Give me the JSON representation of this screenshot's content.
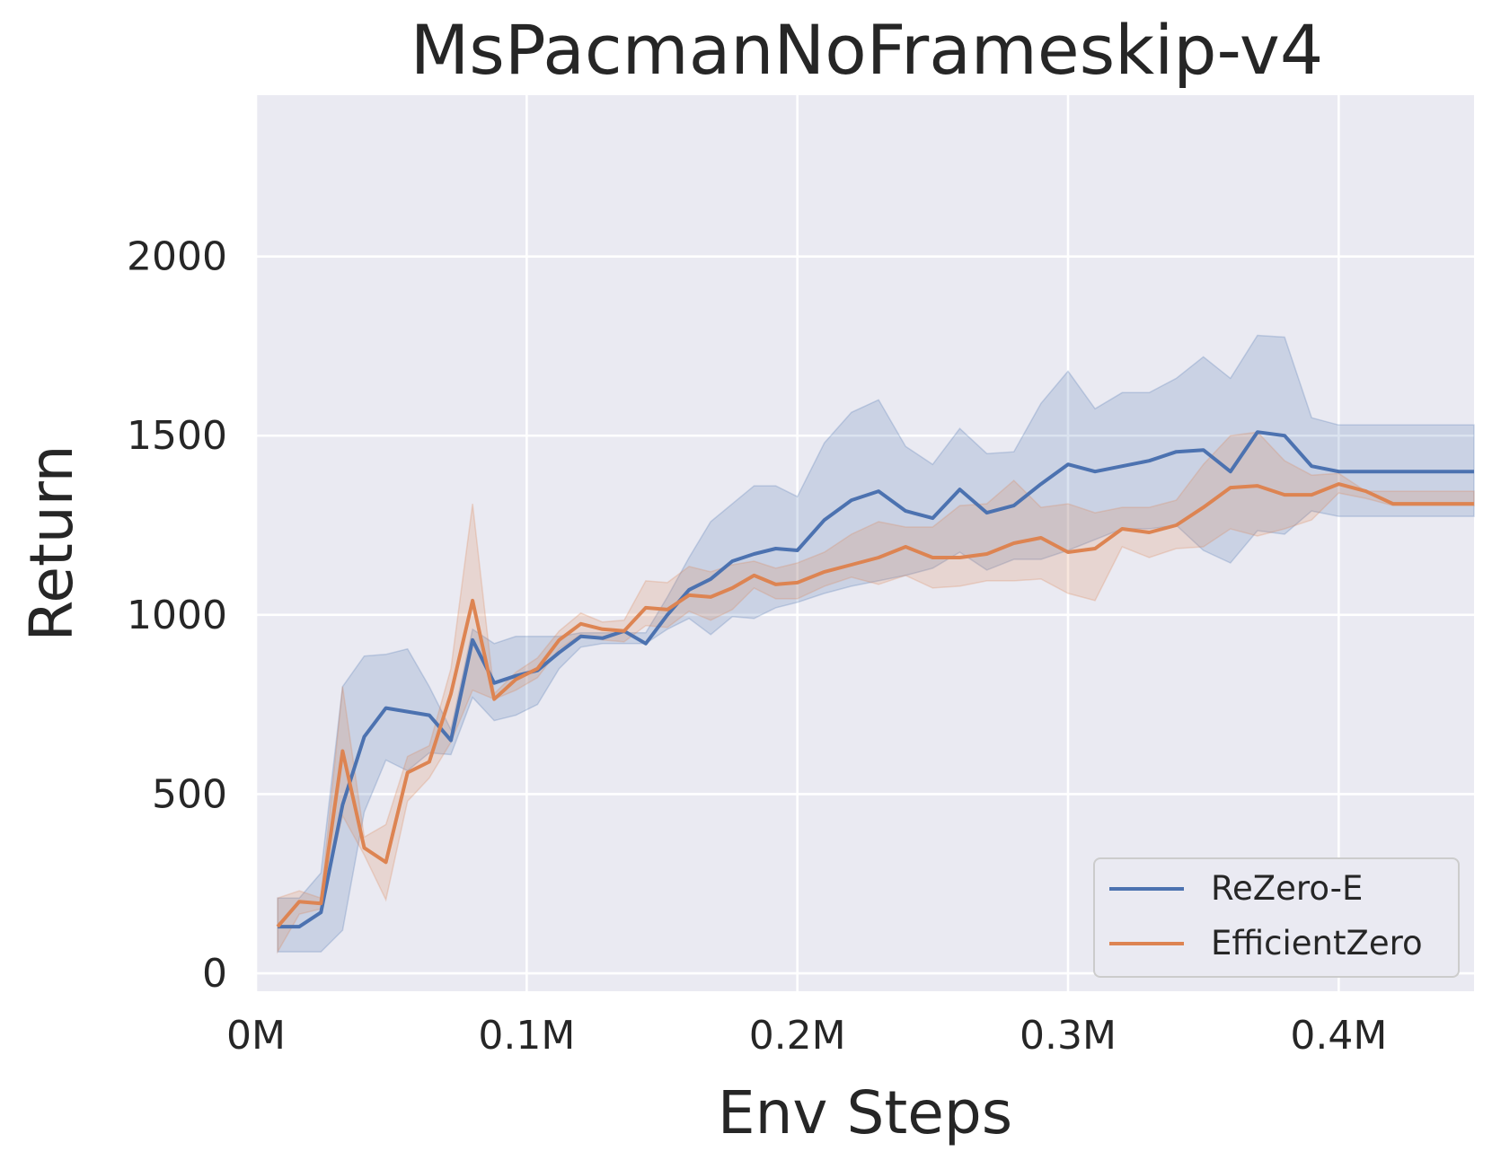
{
  "chart_data": {
    "type": "line",
    "title": "MsPacmanNoFrameskip-v4",
    "xlabel": "Env Steps",
    "ylabel": "Return",
    "xlim": [
      0,
      0.45
    ],
    "ylim": [
      -50,
      2450
    ],
    "xticks": [
      0,
      0.1,
      0.2,
      0.3,
      0.4
    ],
    "xtick_labels": [
      "0M",
      "0.1M",
      "0.2M",
      "0.3M",
      "0.4M"
    ],
    "yticks": [
      0,
      500,
      1000,
      1500,
      2000
    ],
    "ytick_labels": [
      "0",
      "500",
      "1000",
      "1500",
      "2000"
    ],
    "grid": true,
    "legend_position": "lower-right",
    "series": [
      {
        "name": "ReZero-E",
        "color": "#4c72b0",
        "x": [
          0.008,
          0.016,
          0.024,
          0.032,
          0.04,
          0.048,
          0.056,
          0.064,
          0.072,
          0.08,
          0.088,
          0.096,
          0.104,
          0.112,
          0.12,
          0.128,
          0.136,
          0.144,
          0.152,
          0.16,
          0.168,
          0.176,
          0.184,
          0.192,
          0.2,
          0.21,
          0.22,
          0.23,
          0.24,
          0.25,
          0.26,
          0.27,
          0.28,
          0.29,
          0.3,
          0.31,
          0.32,
          0.33,
          0.34,
          0.35,
          0.36,
          0.37,
          0.38,
          0.39,
          0.4,
          0.41,
          0.42,
          0.43,
          0.44,
          0.45
        ],
        "values": [
          130,
          130,
          170,
          470,
          660,
          740,
          730,
          720,
          650,
          930,
          810,
          830,
          845,
          895,
          940,
          935,
          955,
          920,
          1000,
          1070,
          1100,
          1150,
          1170,
          1185,
          1180,
          1265,
          1320,
          1345,
          1290,
          1270,
          1350,
          1285,
          1305,
          1365,
          1420,
          1400,
          1415,
          1430,
          1455,
          1460,
          1400,
          1510,
          1500,
          1415,
          1400,
          1400,
          1400,
          1400,
          1400,
          1400
        ],
        "upper": [
          210,
          210,
          280,
          800,
          885,
          890,
          905,
          800,
          680,
          960,
          920,
          940,
          940,
          940,
          950,
          950,
          950,
          950,
          1050,
          1160,
          1260,
          1310,
          1360,
          1360,
          1330,
          1480,
          1565,
          1600,
          1470,
          1420,
          1520,
          1450,
          1455,
          1590,
          1680,
          1575,
          1620,
          1620,
          1660,
          1720,
          1660,
          1780,
          1775,
          1550,
          1530,
          1530,
          1530,
          1530,
          1530,
          1530
        ],
        "lower": [
          60,
          60,
          60,
          120,
          450,
          595,
          565,
          615,
          610,
          770,
          705,
          720,
          750,
          850,
          910,
          920,
          920,
          920,
          960,
          990,
          945,
          995,
          990,
          1020,
          1035,
          1060,
          1080,
          1095,
          1110,
          1130,
          1175,
          1125,
          1155,
          1155,
          1180,
          1210,
          1240,
          1240,
          1250,
          1180,
          1145,
          1235,
          1225,
          1290,
          1275,
          1275,
          1275,
          1275,
          1275,
          1275
        ]
      },
      {
        "name": "EfficientZero",
        "color": "#dd8452",
        "x": [
          0.008,
          0.016,
          0.024,
          0.032,
          0.04,
          0.048,
          0.056,
          0.064,
          0.072,
          0.08,
          0.088,
          0.096,
          0.104,
          0.112,
          0.12,
          0.128,
          0.136,
          0.144,
          0.152,
          0.16,
          0.168,
          0.176,
          0.184,
          0.192,
          0.2,
          0.21,
          0.22,
          0.23,
          0.24,
          0.25,
          0.26,
          0.27,
          0.28,
          0.29,
          0.3,
          0.31,
          0.32,
          0.33,
          0.34,
          0.35,
          0.36,
          0.37,
          0.38,
          0.39,
          0.4,
          0.41,
          0.42,
          0.43,
          0.44,
          0.45
        ],
        "values": [
          130,
          200,
          195,
          620,
          350,
          310,
          560,
          590,
          780,
          1040,
          765,
          820,
          850,
          930,
          975,
          960,
          955,
          1020,
          1015,
          1055,
          1050,
          1075,
          1110,
          1085,
          1090,
          1120,
          1140,
          1160,
          1190,
          1160,
          1160,
          1170,
          1200,
          1215,
          1175,
          1185,
          1240,
          1230,
          1250,
          1300,
          1355,
          1360,
          1335,
          1335,
          1365,
          1345,
          1310,
          1310,
          1310,
          1310
        ],
        "upper": [
          210,
          230,
          210,
          800,
          380,
          415,
          605,
          635,
          850,
          1310,
          780,
          840,
          880,
          955,
          1005,
          980,
          985,
          1095,
          1090,
          1135,
          1120,
          1140,
          1150,
          1130,
          1145,
          1175,
          1225,
          1260,
          1245,
          1245,
          1305,
          1310,
          1375,
          1300,
          1310,
          1285,
          1300,
          1300,
          1320,
          1420,
          1500,
          1510,
          1430,
          1390,
          1395,
          1345,
          1345,
          1345,
          1345,
          1345
        ],
        "lower": [
          60,
          165,
          180,
          440,
          330,
          205,
          480,
          545,
          645,
          790,
          765,
          790,
          825,
          905,
          945,
          930,
          925,
          970,
          965,
          1010,
          985,
          1015,
          1075,
          1045,
          1045,
          1080,
          1105,
          1085,
          1110,
          1075,
          1080,
          1095,
          1095,
          1100,
          1060,
          1040,
          1190,
          1160,
          1185,
          1190,
          1240,
          1220,
          1240,
          1265,
          1340,
          1325,
          1305,
          1305,
          1305,
          1305
        ]
      }
    ]
  }
}
